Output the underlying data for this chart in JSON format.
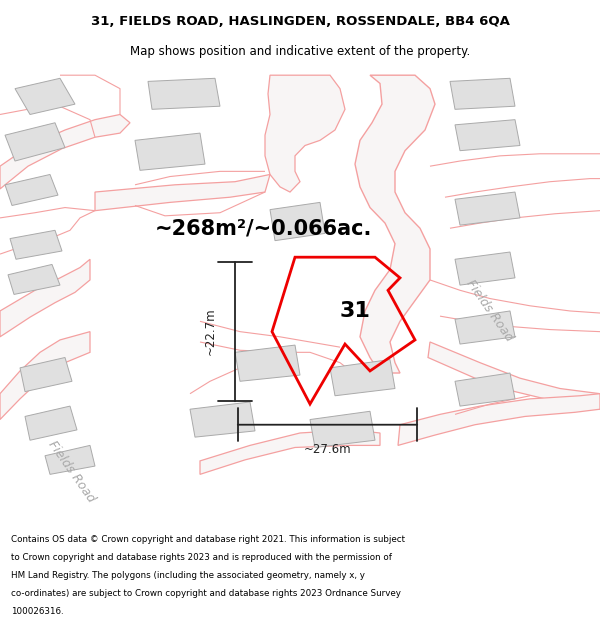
{
  "title_line1": "31, FIELDS ROAD, HASLINGDEN, ROSSENDALE, BB4 6QA",
  "title_line2": "Map shows position and indicative extent of the property.",
  "area_text": "~268m²/~0.066ac.",
  "label_31": "31",
  "dim_height": "~22.7m",
  "dim_width": "~27.6m",
  "fields_road_label": "Fields Road",
  "fields_road_label2": "Fields Road",
  "footer_text": "Contains OS data © Crown copyright and database right 2021. This information is subject to Crown copyright and database rights 2023 and is reproduced with the permission of HM Land Registry. The polygons (including the associated geometry, namely x, y co-ordinates) are subject to Crown copyright and database rights 2023 Ordnance Survey 100026316.",
  "bg_color": "#ffffff",
  "property_color": "#ee0000",
  "building_fill": "#e0e0e0",
  "building_stroke": "#aaaaaa",
  "pink_line_color": "#f4a0a0",
  "road_fill": "#f5f0f0",
  "dim_color": "#222222",
  "fr_label_color": "#aaaaaa",
  "title_fontsize": 9.5,
  "subtitle_fontsize": 8.5,
  "area_fontsize": 15,
  "label31_fontsize": 16,
  "dim_fontsize": 8.5,
  "fr_fontsize": 9,
  "footer_fontsize": 6.3
}
